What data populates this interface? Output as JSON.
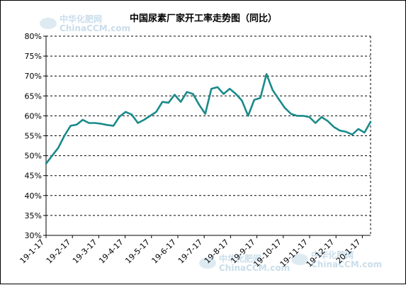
{
  "colors": {
    "line": "#1a8a8a",
    "grid": "#000000",
    "axis": "#000000",
    "watermark": "#9ec3da"
  },
  "watermark": {
    "text_cn": "中华化肥网",
    "text_en": "ChinaCCM.com"
  },
  "chart_data": {
    "type": "line",
    "title": "中国尿素厂家开工率走势图（同比）",
    "xlabel": "",
    "ylabel": "",
    "ylim": [
      30,
      80
    ],
    "yticks": [
      "30%",
      "35%",
      "40%",
      "45%",
      "50%",
      "55%",
      "60%",
      "65%",
      "70%",
      "75%",
      "80%"
    ],
    "xticks": [
      "19-1-17",
      "19-2-17",
      "19-3-17",
      "19-4-17",
      "19-5-17",
      "19-6-17",
      "19-7-17",
      "19-8-17",
      "19-9-17",
      "19-10-17",
      "19-11-17",
      "19-12-17",
      "20-1-17"
    ],
    "grid": "horizontal dashed",
    "legend": "none",
    "series": [
      {
        "values": [
          48.0,
          50.0,
          52.0,
          55.0,
          57.5,
          57.8,
          59.0,
          58.2,
          58.2,
          58.0,
          57.7,
          57.5,
          59.8,
          61.0,
          60.3,
          58.2,
          59.0,
          60.0,
          61.0,
          63.5,
          63.3,
          65.3,
          63.5,
          66.0,
          65.5,
          62.8,
          60.5,
          66.8,
          67.2,
          65.5,
          66.8,
          65.5,
          63.8,
          60.0,
          64.0,
          64.5,
          70.5,
          66.5,
          64.2,
          62.0,
          60.5,
          60.0,
          60.0,
          59.7,
          58.2,
          59.7,
          58.7,
          57.2,
          56.3,
          56.0,
          55.3,
          56.7,
          55.8,
          58.5
        ]
      }
    ]
  }
}
